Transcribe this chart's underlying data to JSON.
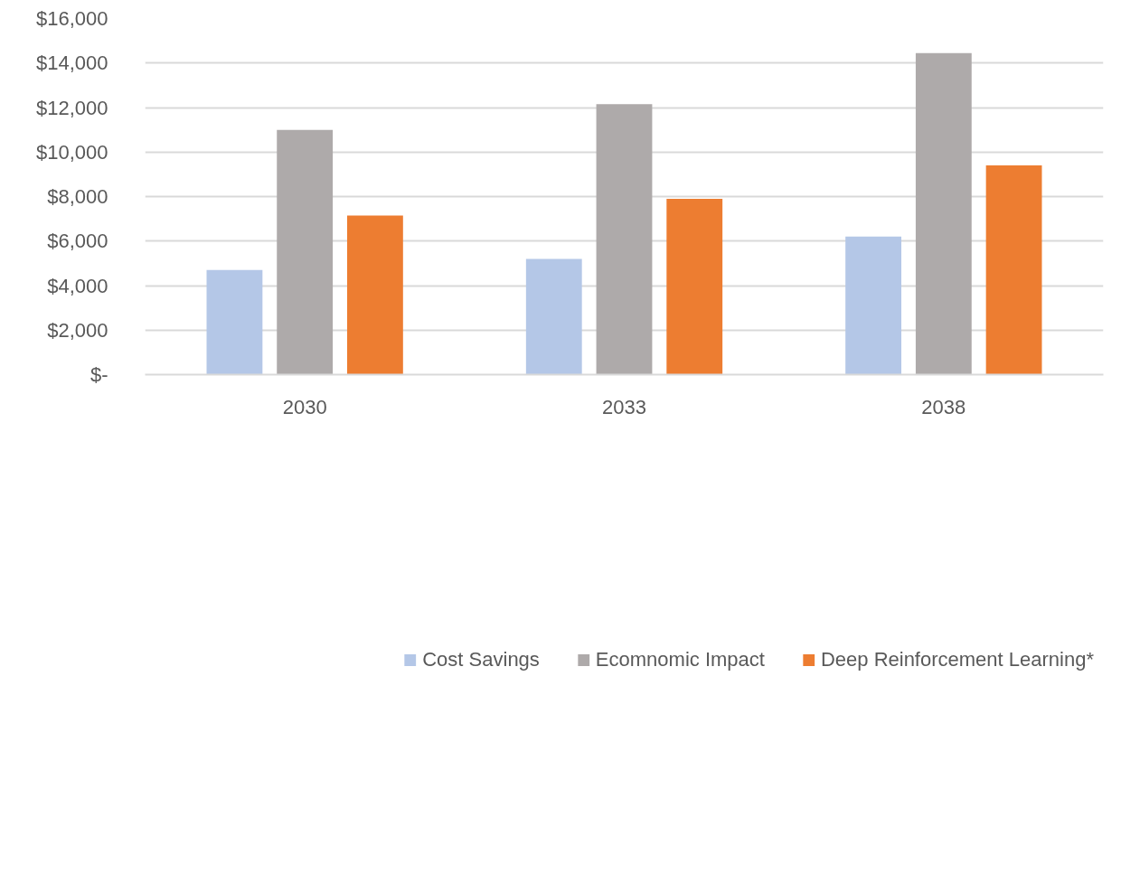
{
  "chart_data": {
    "type": "bar",
    "categories": [
      "2030",
      "2033",
      "2038"
    ],
    "series": [
      {
        "name": "Cost Savings",
        "color": "#b4c7e7",
        "values": [
          4700,
          5200,
          6200
        ]
      },
      {
        "name": "Ecomnomic Impact",
        "color": "#aeaaaa",
        "values": [
          11000,
          12150,
          14450
        ]
      },
      {
        "name": "Deep Reinforcement Learning*",
        "color": "#ed7d31",
        "values": [
          7150,
          7900,
          9400
        ]
      }
    ],
    "ylim": [
      0,
      16000
    ],
    "yticks": [
      {
        "value": 0,
        "label": "$-"
      },
      {
        "value": 2000,
        "label": "$2,000"
      },
      {
        "value": 4000,
        "label": "$4,000"
      },
      {
        "value": 6000,
        "label": "$6,000"
      },
      {
        "value": 8000,
        "label": "$8,000"
      },
      {
        "value": 10000,
        "label": "$10,000"
      },
      {
        "value": 12000,
        "label": "$12,000"
      },
      {
        "value": 14000,
        "label": "$14,000"
      },
      {
        "value": 16000,
        "label": "$16,000"
      }
    ],
    "grid": "y",
    "legend": "bottom"
  }
}
